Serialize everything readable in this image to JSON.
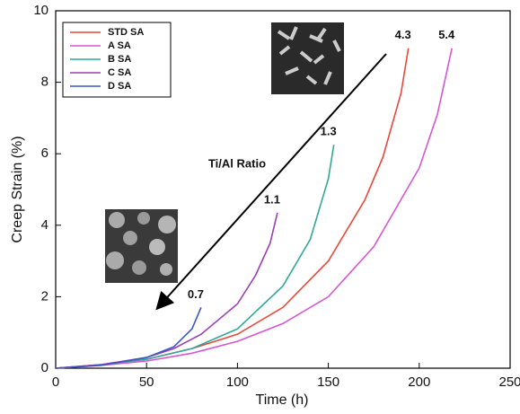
{
  "chart_data": {
    "type": "line",
    "x_label": "Time (h)",
    "y_label": "Creep Strain (%)",
    "xlim": [
      0,
      250
    ],
    "xticks": [
      0,
      50,
      100,
      150,
      200,
      250
    ],
    "ylim": [
      0,
      10
    ],
    "yticks": [
      0,
      2,
      4,
      6,
      8,
      10
    ],
    "grid": false,
    "legend": "upper left",
    "arrow_label": "Ti/Al Ratio",
    "series": [
      {
        "name": "STD SA",
        "color": "#e8473a",
        "label": "4.3",
        "x": [
          0,
          25,
          50,
          75,
          100,
          125,
          150,
          170,
          180,
          190,
          194
        ],
        "values": [
          0,
          0.1,
          0.25,
          0.55,
          0.95,
          1.7,
          3.0,
          4.7,
          5.9,
          7.7,
          8.95
        ]
      },
      {
        "name": "A SA",
        "color": "#d656d0",
        "label": "5.4",
        "x": [
          0,
          25,
          50,
          75,
          100,
          125,
          150,
          175,
          200,
          210,
          218
        ],
        "values": [
          0,
          0.08,
          0.2,
          0.42,
          0.75,
          1.25,
          2.0,
          3.4,
          5.6,
          7.1,
          8.95
        ]
      },
      {
        "name": "B SA",
        "color": "#2fa89a",
        "label": "1.3",
        "x": [
          0,
          25,
          50,
          75,
          100,
          125,
          140,
          150,
          153
        ],
        "values": [
          0,
          0.1,
          0.25,
          0.55,
          1.1,
          2.3,
          3.6,
          5.3,
          6.25
        ]
      },
      {
        "name": "C SA",
        "color": "#9b3fb5",
        "label": "1.1",
        "x": [
          0,
          25,
          50,
          65,
          80,
          100,
          110,
          118,
          122
        ],
        "values": [
          0,
          0.1,
          0.3,
          0.55,
          0.95,
          1.8,
          2.6,
          3.5,
          4.35
        ]
      },
      {
        "name": "D SA",
        "color": "#3d55c4",
        "label": "0.7",
        "x": [
          0,
          25,
          50,
          65,
          75,
          80
        ],
        "values": [
          0,
          0.08,
          0.3,
          0.6,
          1.1,
          1.7
        ]
      }
    ]
  }
}
